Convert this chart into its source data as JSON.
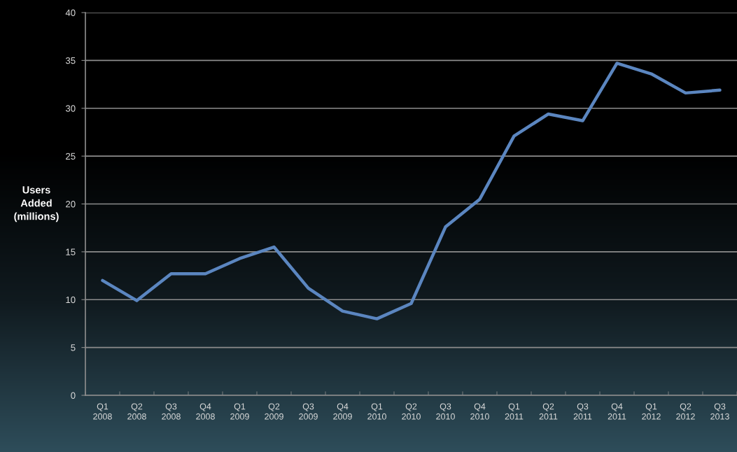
{
  "chart_data": {
    "type": "line",
    "ylabel": "Users\nAdded\n(millions)",
    "categories": [
      "Q1\n2008",
      "Q2\n2008",
      "Q3\n2008",
      "Q4\n2008",
      "Q1\n2009",
      "Q2\n2009",
      "Q3\n2009",
      "Q4\n2009",
      "Q1\n2010",
      "Q2\n2010",
      "Q3\n2010",
      "Q4\n2010",
      "Q1\n2011",
      "Q2\n2011",
      "Q3\n2011",
      "Q4\n2011",
      "Q1\n2012",
      "Q2\n2012",
      "Q3\n2013"
    ],
    "series": [
      {
        "color": "#5b86c0",
        "values": [
          12.0,
          9.9,
          12.7,
          12.7,
          14.3,
          15.5,
          11.2,
          8.8,
          8.0,
          9.6,
          17.6,
          20.5,
          27.1,
          29.4,
          28.7,
          34.7,
          33.6,
          31.6,
          31.9
        ]
      }
    ],
    "ylim": [
      0,
      40
    ],
    "yticks": [
      0,
      5,
      10,
      15,
      20,
      25,
      30,
      35,
      40
    ],
    "grid": "y",
    "line_style": "solid"
  }
}
